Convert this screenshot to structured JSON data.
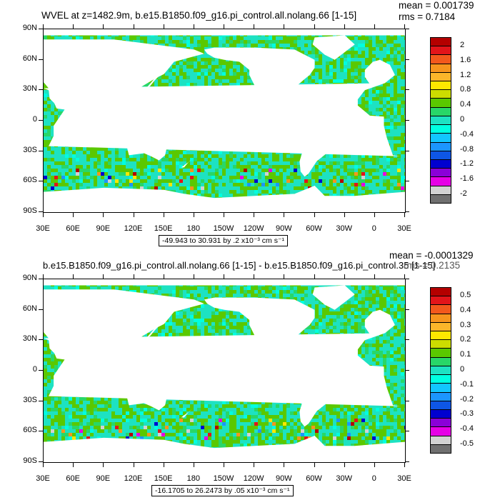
{
  "charts": [
    {
      "title": "WVEL at z=1482.9m, b.e15.B1850.f09_g16.pi_control.all.nolang.66 [1-15]",
      "mean_text": "mean = 0.001739",
      "rms_text": "rms = 0.7184",
      "range_text": "-49.943 to 30.931 by .2 x10⁻³ cm s⁻¹",
      "colorbar_labels": [
        "2",
        "1.6",
        "1.2",
        "0.8",
        "0.4",
        "0",
        "-0.4",
        "-0.8",
        "-1.2",
        "-1.6",
        "-2"
      ]
    },
    {
      "title": "b.e15.B1850.f09_g16.pi_control.all.nolang.66 [1-15] - b.e15.B1850.f09_g16.pi_control.35 [1-15]",
      "mean_text": "mean = -0.0001329",
      "rms_text": "rms = 0.2135",
      "range_text": "-16.1705 to 26.2473 by .05 x10⁻³ cm s⁻¹",
      "colorbar_labels": [
        "0.5",
        "0.4",
        "0.3",
        "0.2",
        "0.1",
        "0",
        "-0.1",
        "-0.2",
        "-0.3",
        "-0.4",
        "-0.5"
      ]
    }
  ],
  "axes": {
    "y_labels": [
      "90N",
      "60N",
      "30N",
      "0",
      "30S",
      "60S",
      "90S"
    ],
    "x_labels": [
      "30E",
      "60E",
      "90E",
      "120E",
      "150E",
      "180",
      "150W",
      "120W",
      "90W",
      "60W",
      "30W",
      "0",
      "30E"
    ]
  },
  "colorbar_colors": [
    "#b40000",
    "#e2141a",
    "#f2581c",
    "#f6951d",
    "#fbb62a",
    "#fde700",
    "#ccdd00",
    "#5ac800",
    "#28d768",
    "#1de2c2",
    "#00ffe0",
    "#12c6ff",
    "#1c96ff",
    "#0e56e6",
    "#0000d0",
    "#8a00d8",
    "#e600e6",
    "#d2d2d2",
    "#707070"
  ],
  "chart_data": [
    {
      "type": "heatmap",
      "title": "WVEL at z=1482.9m, b.e15.B1850.f09_g16.pi_control.all.nolang.66 [1-15]",
      "x_ticks": [
        "30E",
        "60E",
        "90E",
        "120E",
        "150E",
        "180",
        "150W",
        "120W",
        "90W",
        "60W",
        "30W",
        "0",
        "30E"
      ],
      "y_ticks": [
        "90N",
        "60N",
        "30N",
        "0",
        "30S",
        "60S",
        "90S"
      ],
      "colorbar_levels": [
        2,
        1.6,
        1.2,
        0.8,
        0.4,
        0,
        -0.4,
        -0.8,
        -1.2,
        -1.6,
        -2
      ],
      "mean": 0.001739,
      "rms": 0.7184,
      "min": -49.943,
      "max": 30.931,
      "interval": 0.2
    },
    {
      "type": "heatmap",
      "title": "b.e15.B1850.f09_g16.pi_control.all.nolang.66 [1-15] - b.e15.B1850.f09_g16.pi_control.35 [1-15]",
      "x_ticks": [
        "30E",
        "60E",
        "90E",
        "120E",
        "150E",
        "180",
        "150W",
        "120W",
        "90W",
        "60W",
        "30W",
        "0",
        "30E"
      ],
      "y_ticks": [
        "90N",
        "60N",
        "30N",
        "0",
        "30S",
        "60S",
        "90S"
      ],
      "colorbar_levels": [
        0.5,
        0.4,
        0.3,
        0.2,
        0.1,
        0,
        -0.1,
        -0.2,
        -0.3,
        -0.4,
        -0.5
      ],
      "mean": -0.0001329,
      "rms": 0.2135,
      "min": -16.1705,
      "max": 26.2473,
      "interval": 0.05
    }
  ]
}
